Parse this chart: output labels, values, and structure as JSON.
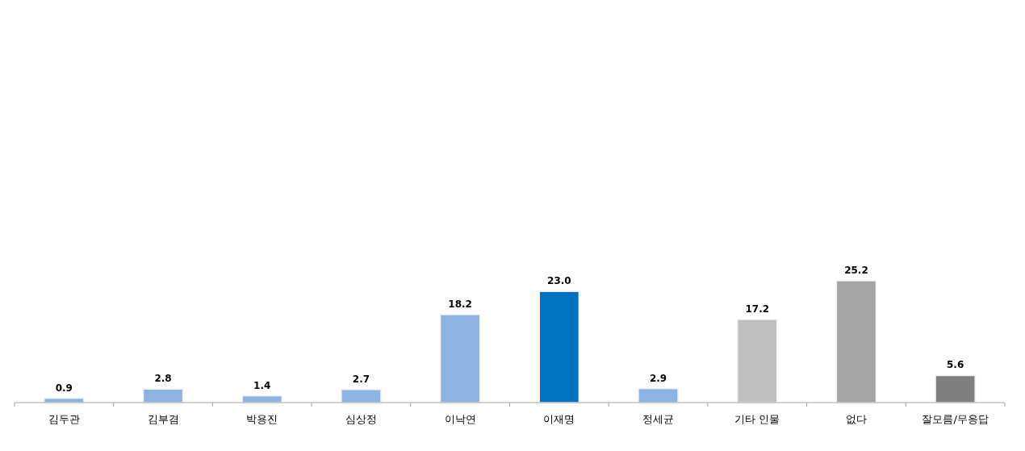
{
  "chart_data": {
    "type": "bar",
    "categories": [
      "김두관",
      "김부겸",
      "박용진",
      "심상정",
      "이낙연",
      "이재명",
      "정세균",
      "기타 인물",
      "없다",
      "잘모름/무응답"
    ],
    "values": [
      0.9,
      2.8,
      1.4,
      2.7,
      18.2,
      23.0,
      2.9,
      17.2,
      25.2,
      5.6
    ],
    "value_labels": [
      "0.9",
      "2.8",
      "1.4",
      "2.7",
      "18.2",
      "23.0",
      "2.9",
      "17.2",
      "25.2",
      "5.6"
    ],
    "colors": [
      "#8db3e2",
      "#8db3e2",
      "#8db3e2",
      "#8db3e2",
      "#8db3e2",
      "#0070c0",
      "#8db3e2",
      "#bfbfbf",
      "#a5a5a5",
      "#7f7f7f"
    ],
    "tick_labels": "x"
  }
}
